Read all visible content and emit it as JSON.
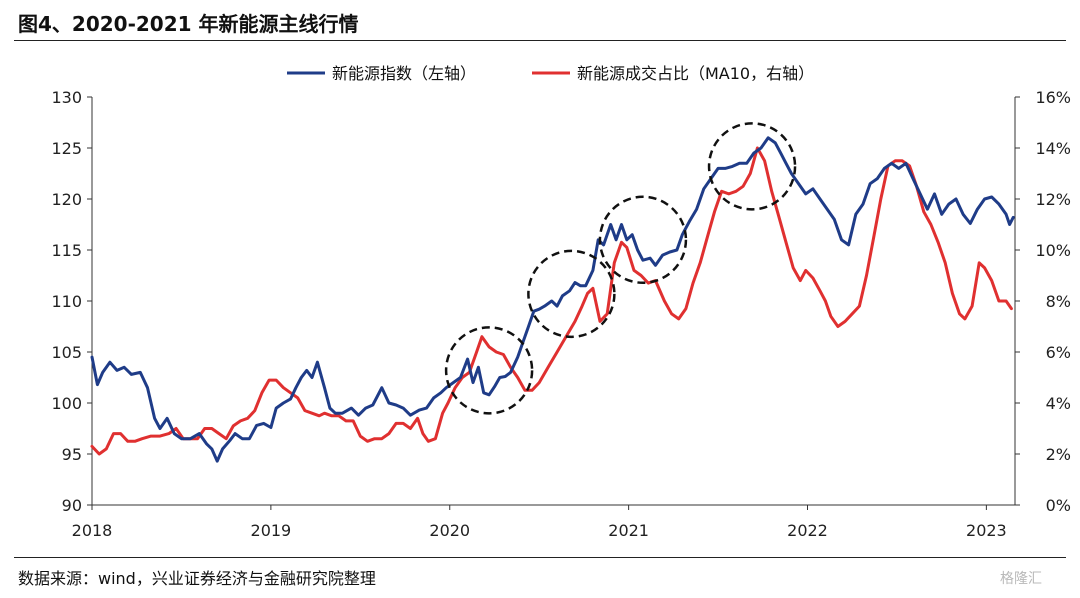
{
  "header": {
    "title": "图4、2020-2021 年新能源主线行情"
  },
  "footer": {
    "source": "数据来源：wind，兴业证券经济与金融研究院整理"
  },
  "watermark": {
    "text": "格隆汇"
  },
  "chart_data": {
    "type": "line",
    "legend_position": "top-center",
    "grid": false,
    "x_axis": {
      "range": [
        2018.0,
        2023.16
      ],
      "ticks": [
        2018,
        2019,
        2020,
        2021,
        2022,
        2023
      ],
      "tick_labels": [
        "2018",
        "2019",
        "2020",
        "2021",
        "2022",
        "2023"
      ]
    },
    "y_left": {
      "range": [
        90,
        130
      ],
      "ticks": [
        90,
        95,
        100,
        105,
        110,
        115,
        120,
        125,
        130
      ],
      "tick_labels": [
        "90",
        "95",
        "100",
        "105",
        "110",
        "115",
        "120",
        "125",
        "130"
      ]
    },
    "y_right": {
      "range": [
        0,
        16
      ],
      "ticks": [
        0,
        2,
        4,
        6,
        8,
        10,
        12,
        14,
        16
      ],
      "tick_labels": [
        "0%",
        "2%",
        "4%",
        "6%",
        "8%",
        "10%",
        "12%",
        "14%",
        "16%"
      ]
    },
    "series": [
      {
        "name": "新能源指数（左轴）",
        "axis": "left",
        "color": "#1f3c88",
        "points": [
          [
            2018.0,
            104.5
          ],
          [
            2018.03,
            101.8
          ],
          [
            2018.06,
            103.0
          ],
          [
            2018.1,
            104.0
          ],
          [
            2018.14,
            103.2
          ],
          [
            2018.18,
            103.5
          ],
          [
            2018.22,
            102.8
          ],
          [
            2018.27,
            103.0
          ],
          [
            2018.31,
            101.5
          ],
          [
            2018.35,
            98.5
          ],
          [
            2018.38,
            97.5
          ],
          [
            2018.42,
            98.5
          ],
          [
            2018.46,
            97.0
          ],
          [
            2018.5,
            96.5
          ],
          [
            2018.55,
            96.5
          ],
          [
            2018.6,
            97.0
          ],
          [
            2018.64,
            96.0
          ],
          [
            2018.67,
            95.5
          ],
          [
            2018.7,
            94.3
          ],
          [
            2018.73,
            95.5
          ],
          [
            2018.77,
            96.3
          ],
          [
            2018.8,
            97.0
          ],
          [
            2018.84,
            96.5
          ],
          [
            2018.88,
            96.5
          ],
          [
            2018.92,
            97.8
          ],
          [
            2018.96,
            98.0
          ],
          [
            2019.0,
            97.6
          ],
          [
            2019.03,
            99.5
          ],
          [
            2019.07,
            100.0
          ],
          [
            2019.11,
            100.4
          ],
          [
            2019.14,
            101.5
          ],
          [
            2019.17,
            102.5
          ],
          [
            2019.2,
            103.2
          ],
          [
            2019.23,
            102.5
          ],
          [
            2019.26,
            104.0
          ],
          [
            2019.3,
            101.5
          ],
          [
            2019.33,
            99.5
          ],
          [
            2019.36,
            99.0
          ],
          [
            2019.4,
            99.0
          ],
          [
            2019.45,
            99.5
          ],
          [
            2019.49,
            98.8
          ],
          [
            2019.53,
            99.5
          ],
          [
            2019.57,
            99.8
          ],
          [
            2019.62,
            101.5
          ],
          [
            2019.66,
            100.0
          ],
          [
            2019.7,
            99.8
          ],
          [
            2019.74,
            99.5
          ],
          [
            2019.78,
            98.8
          ],
          [
            2019.83,
            99.3
          ],
          [
            2019.87,
            99.5
          ],
          [
            2019.91,
            100.5
          ],
          [
            2019.95,
            101.0
          ],
          [
            2019.98,
            101.5
          ],
          [
            2020.02,
            102.0
          ],
          [
            2020.06,
            102.5
          ],
          [
            2020.1,
            104.3
          ],
          [
            2020.13,
            102.0
          ],
          [
            2020.16,
            103.5
          ],
          [
            2020.19,
            101.0
          ],
          [
            2020.22,
            100.8
          ],
          [
            2020.25,
            101.6
          ],
          [
            2020.28,
            102.5
          ],
          [
            2020.31,
            102.6
          ],
          [
            2020.34,
            103.0
          ],
          [
            2020.38,
            104.5
          ],
          [
            2020.41,
            106.0
          ],
          [
            2020.44,
            107.5
          ],
          [
            2020.47,
            109.0
          ],
          [
            2020.5,
            109.2
          ],
          [
            2020.53,
            109.5
          ],
          [
            2020.57,
            110.0
          ],
          [
            2020.6,
            109.5
          ],
          [
            2020.63,
            110.5
          ],
          [
            2020.67,
            111.0
          ],
          [
            2020.7,
            111.8
          ],
          [
            2020.73,
            111.5
          ],
          [
            2020.76,
            111.5
          ],
          [
            2020.8,
            113.0
          ],
          [
            2020.83,
            116.0
          ],
          [
            2020.86,
            115.5
          ],
          [
            2020.9,
            117.5
          ],
          [
            2020.93,
            116.0
          ],
          [
            2020.96,
            117.5
          ],
          [
            2020.99,
            116.0
          ],
          [
            2021.02,
            116.5
          ],
          [
            2021.05,
            115.0
          ],
          [
            2021.08,
            114.0
          ],
          [
            2021.12,
            114.2
          ],
          [
            2021.15,
            113.5
          ],
          [
            2021.19,
            114.5
          ],
          [
            2021.23,
            114.8
          ],
          [
            2021.27,
            115.0
          ],
          [
            2021.3,
            116.5
          ],
          [
            2021.34,
            117.8
          ],
          [
            2021.38,
            119.0
          ],
          [
            2021.42,
            121.0
          ],
          [
            2021.46,
            122.0
          ],
          [
            2021.5,
            123.0
          ],
          [
            2021.54,
            123.0
          ],
          [
            2021.58,
            123.2
          ],
          [
            2021.62,
            123.5
          ],
          [
            2021.66,
            123.5
          ],
          [
            2021.7,
            124.5
          ],
          [
            2021.74,
            125.0
          ],
          [
            2021.78,
            126.0
          ],
          [
            2021.82,
            125.5
          ],
          [
            2021.85,
            124.5
          ],
          [
            2021.88,
            123.5
          ],
          [
            2021.91,
            122.5
          ],
          [
            2021.95,
            121.5
          ],
          [
            2021.99,
            120.5
          ],
          [
            2022.03,
            121.0
          ],
          [
            2022.07,
            120.0
          ],
          [
            2022.11,
            119.0
          ],
          [
            2022.15,
            118.0
          ],
          [
            2022.19,
            116.0
          ],
          [
            2022.23,
            115.5
          ],
          [
            2022.27,
            118.5
          ],
          [
            2022.31,
            119.5
          ],
          [
            2022.35,
            121.5
          ],
          [
            2022.39,
            122.0
          ],
          [
            2022.43,
            123.0
          ],
          [
            2022.47,
            123.5
          ],
          [
            2022.51,
            123.0
          ],
          [
            2022.55,
            123.5
          ],
          [
            2022.59,
            122.0
          ],
          [
            2022.63,
            120.5
          ],
          [
            2022.67,
            119.0
          ],
          [
            2022.71,
            120.5
          ],
          [
            2022.75,
            118.5
          ],
          [
            2022.79,
            119.5
          ],
          [
            2022.83,
            120.0
          ],
          [
            2022.87,
            118.5
          ],
          [
            2022.91,
            117.6
          ],
          [
            2022.95,
            119.0
          ],
          [
            2022.99,
            120.0
          ],
          [
            2023.03,
            120.2
          ],
          [
            2023.07,
            119.5
          ],
          [
            2023.11,
            118.5
          ],
          [
            2023.13,
            117.5
          ],
          [
            2023.15,
            118.2
          ]
        ]
      },
      {
        "name": "新能源成交占比（MA10，右轴）",
        "axis": "right",
        "color": "#e03030",
        "points": [
          [
            2018.0,
            2.3
          ],
          [
            2018.04,
            2.0
          ],
          [
            2018.08,
            2.2
          ],
          [
            2018.12,
            2.8
          ],
          [
            2018.16,
            2.8
          ],
          [
            2018.2,
            2.5
          ],
          [
            2018.24,
            2.5
          ],
          [
            2018.28,
            2.6
          ],
          [
            2018.33,
            2.7
          ],
          [
            2018.38,
            2.7
          ],
          [
            2018.43,
            2.8
          ],
          [
            2018.47,
            3.0
          ],
          [
            2018.51,
            2.6
          ],
          [
            2018.55,
            2.6
          ],
          [
            2018.59,
            2.6
          ],
          [
            2018.63,
            3.0
          ],
          [
            2018.67,
            3.0
          ],
          [
            2018.71,
            2.8
          ],
          [
            2018.75,
            2.6
          ],
          [
            2018.79,
            3.1
          ],
          [
            2018.83,
            3.3
          ],
          [
            2018.87,
            3.4
          ],
          [
            2018.91,
            3.7
          ],
          [
            2018.95,
            4.4
          ],
          [
            2018.99,
            4.9
          ],
          [
            2019.03,
            4.9
          ],
          [
            2019.07,
            4.6
          ],
          [
            2019.11,
            4.4
          ],
          [
            2019.15,
            4.2
          ],
          [
            2019.19,
            3.7
          ],
          [
            2019.23,
            3.6
          ],
          [
            2019.27,
            3.5
          ],
          [
            2019.3,
            3.6
          ],
          [
            2019.34,
            3.5
          ],
          [
            2019.38,
            3.5
          ],
          [
            2019.42,
            3.3
          ],
          [
            2019.46,
            3.3
          ],
          [
            2019.5,
            2.7
          ],
          [
            2019.54,
            2.5
          ],
          [
            2019.58,
            2.6
          ],
          [
            2019.62,
            2.6
          ],
          [
            2019.66,
            2.8
          ],
          [
            2019.7,
            3.2
          ],
          [
            2019.74,
            3.2
          ],
          [
            2019.78,
            3.0
          ],
          [
            2019.82,
            3.4
          ],
          [
            2019.85,
            2.8
          ],
          [
            2019.88,
            2.5
          ],
          [
            2019.92,
            2.6
          ],
          [
            2019.96,
            3.6
          ],
          [
            2019.99,
            4.0
          ],
          [
            2020.03,
            4.6
          ],
          [
            2020.07,
            5.0
          ],
          [
            2020.11,
            5.2
          ],
          [
            2020.15,
            6.0
          ],
          [
            2020.18,
            6.6
          ],
          [
            2020.22,
            6.2
          ],
          [
            2020.26,
            6.0
          ],
          [
            2020.3,
            5.9
          ],
          [
            2020.34,
            5.4
          ],
          [
            2020.38,
            5.0
          ],
          [
            2020.42,
            4.5
          ],
          [
            2020.46,
            4.5
          ],
          [
            2020.5,
            4.8
          ],
          [
            2020.55,
            5.4
          ],
          [
            2020.6,
            6.0
          ],
          [
            2020.65,
            6.6
          ],
          [
            2020.7,
            7.2
          ],
          [
            2020.74,
            7.8
          ],
          [
            2020.77,
            8.3
          ],
          [
            2020.8,
            8.5
          ],
          [
            2020.84,
            7.2
          ],
          [
            2020.88,
            7.5
          ],
          [
            2020.92,
            9.5
          ],
          [
            2020.96,
            10.3
          ],
          [
            2020.99,
            10.1
          ],
          [
            2021.03,
            9.2
          ],
          [
            2021.07,
            9.0
          ],
          [
            2021.11,
            8.7
          ],
          [
            2021.15,
            8.8
          ],
          [
            2021.2,
            8.0
          ],
          [
            2021.24,
            7.5
          ],
          [
            2021.28,
            7.3
          ],
          [
            2021.32,
            7.7
          ],
          [
            2021.36,
            8.7
          ],
          [
            2021.4,
            9.5
          ],
          [
            2021.44,
            10.5
          ],
          [
            2021.48,
            11.5
          ],
          [
            2021.52,
            12.3
          ],
          [
            2021.56,
            12.2
          ],
          [
            2021.6,
            12.3
          ],
          [
            2021.64,
            12.5
          ],
          [
            2021.68,
            13.0
          ],
          [
            2021.72,
            14.0
          ],
          [
            2021.76,
            13.5
          ],
          [
            2021.8,
            12.3
          ],
          [
            2021.84,
            11.3
          ],
          [
            2021.88,
            10.3
          ],
          [
            2021.92,
            9.3
          ],
          [
            2021.96,
            8.8
          ],
          [
            2021.99,
            9.2
          ],
          [
            2022.03,
            8.9
          ],
          [
            2022.07,
            8.4
          ],
          [
            2022.1,
            8.0
          ],
          [
            2022.13,
            7.4
          ],
          [
            2022.17,
            7.0
          ],
          [
            2022.21,
            7.2
          ],
          [
            2022.25,
            7.5
          ],
          [
            2022.29,
            7.8
          ],
          [
            2022.33,
            9.0
          ],
          [
            2022.37,
            10.5
          ],
          [
            2022.41,
            12.0
          ],
          [
            2022.45,
            13.3
          ],
          [
            2022.49,
            13.5
          ],
          [
            2022.53,
            13.5
          ],
          [
            2022.57,
            13.3
          ],
          [
            2022.61,
            12.5
          ],
          [
            2022.65,
            11.5
          ],
          [
            2022.69,
            11.0
          ],
          [
            2022.73,
            10.3
          ],
          [
            2022.77,
            9.5
          ],
          [
            2022.81,
            8.3
          ],
          [
            2022.85,
            7.5
          ],
          [
            2022.88,
            7.3
          ],
          [
            2022.92,
            7.8
          ],
          [
            2022.96,
            9.5
          ],
          [
            2022.99,
            9.3
          ],
          [
            2023.03,
            8.8
          ],
          [
            2023.07,
            8.0
          ],
          [
            2023.11,
            8.0
          ],
          [
            2023.14,
            7.7
          ]
        ]
      }
    ],
    "annotations": [
      {
        "type": "dashed-circle",
        "center": [
          2020.22,
          103.2
        ]
      },
      {
        "type": "dashed-circle",
        "center": [
          2020.68,
          110.7
        ]
      },
      {
        "type": "dashed-circle",
        "center": [
          2021.08,
          116.0
        ]
      },
      {
        "type": "dashed-circle",
        "center": [
          2021.69,
          123.2
        ]
      }
    ]
  }
}
